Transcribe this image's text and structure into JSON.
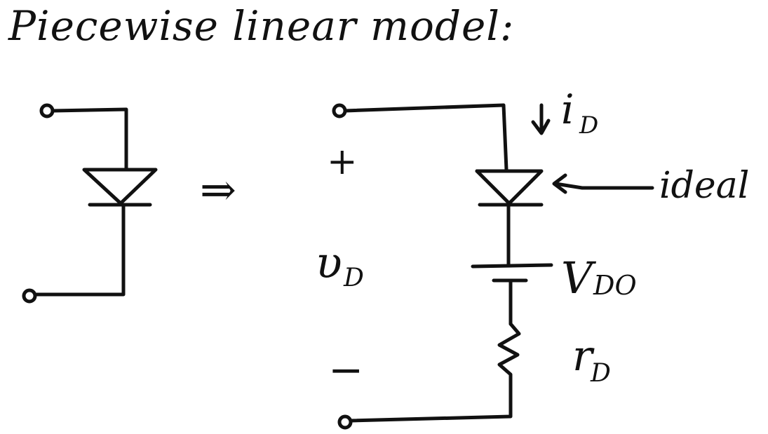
{
  "title": "Piecewise linear model:",
  "labels": {
    "arrow": "⇒",
    "plus": "+",
    "minus": "−",
    "voltage": "υ",
    "voltage_sub": "D",
    "current": "i",
    "current_sub": "D",
    "ideal": "ideal",
    "vd0_main": "V",
    "vd0_sub": "DO",
    "rd_main": "r",
    "rd_sub": "D"
  }
}
